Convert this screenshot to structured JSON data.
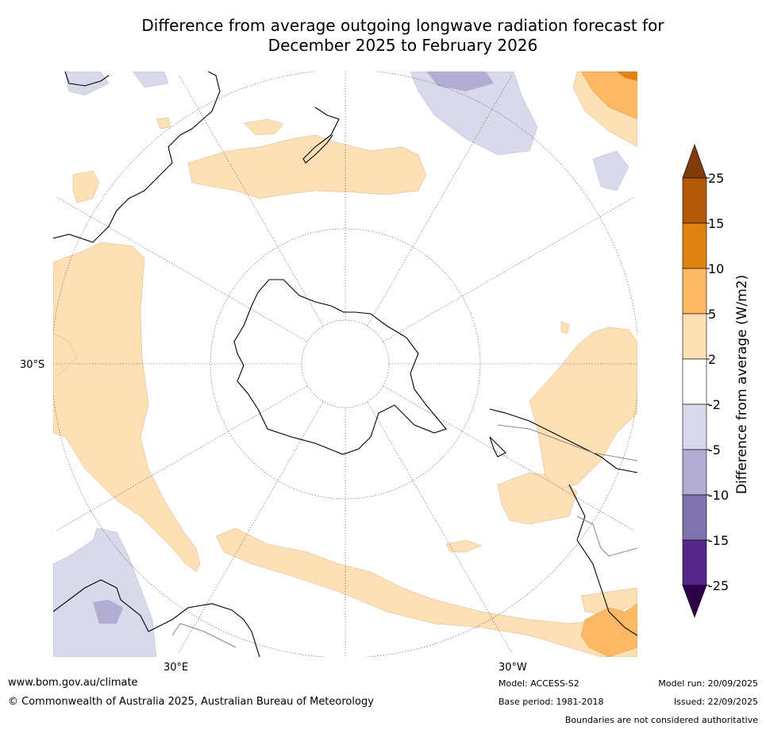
{
  "title_line1": "Difference from average outgoing longwave radiation forecast for",
  "title_line2": "December 2025 to February 2026",
  "map": {
    "lat_label": "30°S",
    "lon_label_east": "30°E",
    "lon_label_west": "30°W"
  },
  "colorbar": {
    "label": "Difference from average (W/m2)",
    "ticks": [
      "25",
      "15",
      "10",
      "5",
      "2",
      "-2",
      "-5",
      "-10",
      "-15",
      "-25"
    ],
    "colors_top_to_bottom": [
      "#7f3b08",
      "#b35806",
      "#e08214",
      "#fdb863",
      "#fee0b6",
      "#ffffff",
      "#d8daeb",
      "#b2abd2",
      "#8073ac",
      "#542788",
      "#2d004b"
    ]
  },
  "footer": {
    "website": "www.bom.gov.au/climate",
    "copyright": "© Commonwealth of Australia 2025, Australian Bureau of Meteorology",
    "model": "Model: ACCESS-S2",
    "base_period": "Base period: 1981-2018",
    "model_run": "Model run: 20/09/2025",
    "issued": "Issued: 22/09/2025",
    "disclaimer": "Boundaries are not considered authoritative"
  }
}
